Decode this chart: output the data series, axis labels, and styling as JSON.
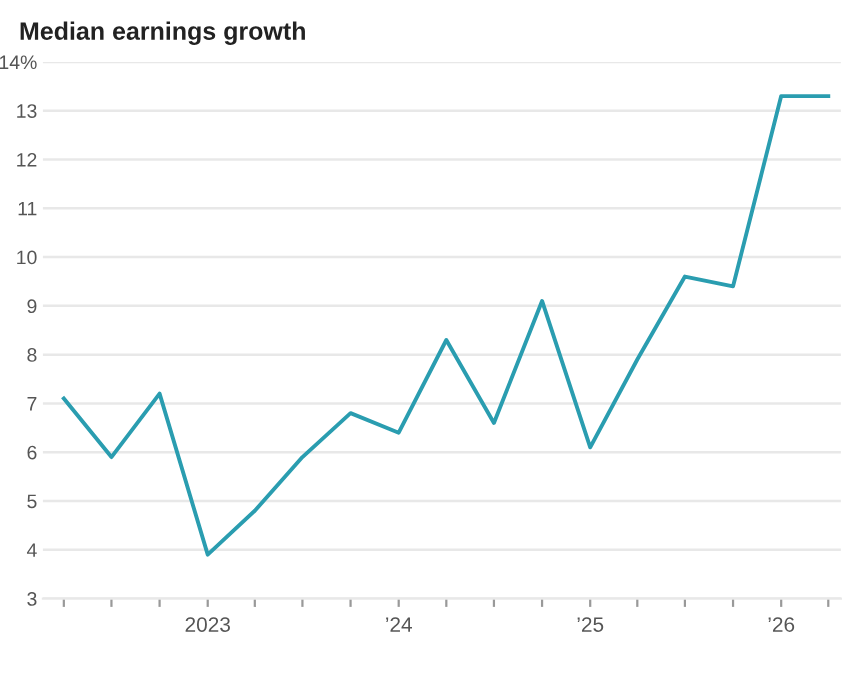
{
  "chart_data": {
    "type": "line",
    "title": "Median earnings growth",
    "x": [
      "2022-04",
      "2022-07",
      "2022-10",
      "2023-01",
      "2023-04",
      "2023-07",
      "2023-10",
      "2024-01",
      "2024-04",
      "2024-07",
      "2024-10",
      "2025-01",
      "2025-04",
      "2025-07",
      "2025-10",
      "2026-01",
      "2026-04"
    ],
    "series": [
      {
        "color": "#2a9db0",
        "values": [
          7.1,
          5.9,
          7.2,
          3.9,
          4.8,
          5.9,
          6.8,
          6.4,
          8.3,
          6.6,
          9.1,
          6.1,
          7.9,
          9.6,
          9.4,
          13.3,
          13.3
        ]
      }
    ],
    "xlim": [
      "2022-02-20",
      "2026-04-25"
    ],
    "xticks": [
      {
        "value": "2022-04",
        "label": null
      },
      {
        "value": "2022-07",
        "label": null
      },
      {
        "value": "2022-10",
        "label": null
      },
      {
        "value": "2023-01",
        "label": "2023"
      },
      {
        "value": "2023-04",
        "label": null
      },
      {
        "value": "2023-07",
        "label": null
      },
      {
        "value": "2023-10",
        "label": null
      },
      {
        "value": "2024-01",
        "label": "’24"
      },
      {
        "value": "2024-04",
        "label": null
      },
      {
        "value": "2024-07",
        "label": null
      },
      {
        "value": "2024-10",
        "label": null
      },
      {
        "value": "2025-01",
        "label": "’25"
      },
      {
        "value": "2025-04",
        "label": null
      },
      {
        "value": "2025-07",
        "label": null
      },
      {
        "value": "2025-10",
        "label": null
      },
      {
        "value": "2026-01",
        "label": "’26"
      },
      {
        "value": "2026-04",
        "label": null
      }
    ],
    "ylim": [
      3,
      14
    ],
    "yticks": [
      3,
      4,
      5,
      6,
      7,
      8,
      9,
      10,
      11,
      12,
      13,
      {
        "value": 14,
        "label": "14%"
      }
    ],
    "grid": "y",
    "legend": false,
    "marker": "none",
    "line_style": "solid"
  }
}
